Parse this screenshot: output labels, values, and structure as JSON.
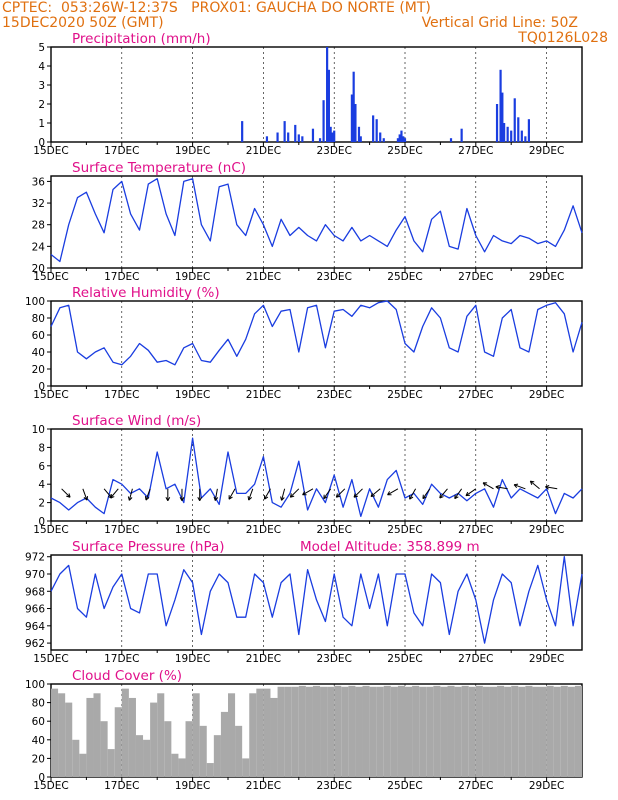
{
  "header": {
    "line1_left": "CPTEC:  053:26W-12:37S   PROX01: GAUCHA DO NORTE (MT)",
    "line2_left": "15DEC2020 50Z (GMT)",
    "line2_right": "Vertical Grid Line: 50Z",
    "line3_right": "TQ0126L028"
  },
  "colors": {
    "header": "#e07010",
    "title": "#e0108a",
    "line": "#1a3de0",
    "cloud": "#a9a9a9",
    "arrow": "#000000"
  },
  "x_axis_labels": [
    "15DEC",
    "17DEC",
    "19DEC",
    "21DEC",
    "23DEC",
    "25DEC",
    "27DEC",
    "29DEC"
  ],
  "extra_annotations": {
    "model_altitude": "Model Altitude: 358.899 m"
  },
  "chart_data": [
    {
      "type": "bar",
      "title": "Precipitation (mm/h)",
      "ylim": [
        0,
        5
      ],
      "yticks": [
        "0",
        "1",
        "2",
        "3",
        "4",
        "5"
      ],
      "x_unit": "days since 15DEC 00Z",
      "x": [
        5.4,
        6.1,
        6.4,
        6.6,
        6.7,
        6.9,
        7.0,
        7.1,
        7.4,
        7.6,
        7.7,
        7.8,
        7.85,
        7.9,
        7.95,
        8.0,
        8.5,
        8.55,
        8.6,
        8.7,
        8.75,
        9.1,
        9.2,
        9.3,
        9.4,
        9.8,
        9.85,
        9.9,
        9.95,
        10.0,
        11.3,
        11.6,
        12.6,
        12.7,
        12.75,
        12.8,
        12.9,
        13.0,
        13.1,
        13.2,
        13.3,
        13.4,
        13.5
      ],
      "values": [
        1.1,
        0.3,
        0.5,
        1.1,
        0.5,
        0.9,
        0.4,
        0.3,
        0.7,
        0.2,
        2.2,
        5.0,
        3.8,
        0.8,
        0.5,
        0.6,
        2.5,
        3.7,
        2.0,
        0.8,
        0.3,
        1.4,
        1.2,
        0.5,
        0.2,
        0.2,
        0.4,
        0.6,
        0.3,
        0.2,
        0.2,
        0.7,
        2.0,
        3.8,
        2.6,
        1.0,
        0.8,
        0.6,
        2.3,
        1.3,
        0.6,
        0.3,
        1.2
      ]
    },
    {
      "type": "line",
      "title": "Surface Temperature (nC)",
      "ylim": [
        20,
        37
      ],
      "yticks": [
        "20",
        "24",
        "28",
        "32",
        "36"
      ],
      "x": [
        0,
        0.25,
        0.5,
        0.75,
        1,
        1.25,
        1.5,
        1.75,
        2,
        2.25,
        2.5,
        2.75,
        3,
        3.25,
        3.5,
        3.75,
        4,
        4.25,
        4.5,
        4.75,
        5,
        5.25,
        5.5,
        5.75,
        6,
        6.25,
        6.5,
        6.75,
        7,
        7.25,
        7.5,
        7.75,
        8,
        8.25,
        8.5,
        8.75,
        9,
        9.25,
        9.5,
        9.75,
        10,
        10.25,
        10.5,
        10.75,
        11,
        11.25,
        11.5,
        11.75,
        12,
        12.25,
        12.5,
        12.75,
        13,
        13.25,
        13.5,
        13.75,
        14,
        14.25,
        14.5,
        14.75,
        15
      ],
      "values": [
        22.5,
        21.2,
        28,
        33,
        34,
        30,
        26.5,
        34.5,
        36,
        30,
        27,
        35.5,
        36.5,
        30,
        26,
        36,
        36.5,
        28,
        25,
        35,
        35.5,
        28,
        26,
        31,
        28,
        24,
        29,
        26,
        27.5,
        26,
        25,
        28,
        26,
        25,
        27.5,
        25,
        26,
        25,
        24,
        27,
        29.5,
        25,
        23,
        29,
        30.5,
        24,
        23.5,
        31,
        26,
        23,
        26,
        25,
        24.5,
        26,
        25.5,
        24.5,
        25,
        24,
        27,
        31.5,
        26.5
      ]
    },
    {
      "type": "line",
      "title": "Relative Humidity (%)",
      "ylim": [
        0,
        100
      ],
      "yticks": [
        "0",
        "20",
        "40",
        "60",
        "80",
        "100"
      ],
      "x": [
        0,
        0.25,
        0.5,
        0.75,
        1,
        1.25,
        1.5,
        1.75,
        2,
        2.25,
        2.5,
        2.75,
        3,
        3.25,
        3.5,
        3.75,
        4,
        4.25,
        4.5,
        4.75,
        5,
        5.25,
        5.5,
        5.75,
        6,
        6.25,
        6.5,
        6.75,
        7,
        7.25,
        7.5,
        7.75,
        8,
        8.25,
        8.5,
        8.75,
        9,
        9.25,
        9.5,
        9.75,
        10,
        10.25,
        10.5,
        10.75,
        11,
        11.25,
        11.5,
        11.75,
        12,
        12.25,
        12.5,
        12.75,
        13,
        13.25,
        13.5,
        13.75,
        14,
        14.25,
        14.5,
        14.75,
        15
      ],
      "values": [
        70,
        92,
        95,
        40,
        32,
        40,
        45,
        28,
        25,
        35,
        50,
        42,
        28,
        30,
        25,
        45,
        50,
        30,
        28,
        42,
        55,
        35,
        55,
        85,
        95,
        70,
        88,
        90,
        40,
        92,
        95,
        45,
        88,
        90,
        82,
        95,
        92,
        98,
        100,
        90,
        50,
        40,
        70,
        92,
        80,
        45,
        40,
        82,
        95,
        40,
        35,
        80,
        90,
        45,
        40,
        90,
        95,
        98,
        85,
        40,
        75
      ]
    },
    {
      "type": "line",
      "title": "Surface Wind (m/s)",
      "ylim": [
        0,
        10
      ],
      "yticks": [
        "0",
        "2",
        "4",
        "6",
        "8",
        "10"
      ],
      "x": [
        0,
        0.25,
        0.5,
        0.75,
        1,
        1.25,
        1.5,
        1.75,
        2,
        2.25,
        2.5,
        2.75,
        3,
        3.25,
        3.5,
        3.75,
        4,
        4.25,
        4.5,
        4.75,
        5,
        5.25,
        5.5,
        5.75,
        6,
        6.25,
        6.5,
        6.75,
        7,
        7.25,
        7.5,
        7.75,
        8,
        8.25,
        8.5,
        8.75,
        9,
        9.25,
        9.5,
        9.75,
        10,
        10.25,
        10.5,
        10.75,
        11,
        11.25,
        11.5,
        11.75,
        12,
        12.25,
        12.5,
        12.75,
        13,
        13.25,
        13.5,
        13.75,
        14,
        14.25,
        14.5,
        14.75,
        15
      ],
      "values": [
        2.5,
        2,
        1.2,
        2,
        2.5,
        1.5,
        0.8,
        4.5,
        4,
        3,
        3.5,
        2.5,
        7.5,
        3.5,
        4,
        2,
        9,
        2.5,
        3.5,
        1.8,
        7.5,
        3,
        3,
        4,
        7,
        2,
        1.5,
        3,
        6.5,
        1.2,
        3.5,
        2,
        5,
        1.5,
        4.5,
        0.5,
        3.5,
        1.5,
        4.5,
        5.5,
        2.5,
        3,
        1.8,
        4,
        3,
        2.5,
        3,
        2.2,
        3,
        3.5,
        1.5,
        4.5,
        2.5,
        3.5,
        3,
        2.5,
        3.5,
        0.8,
        3,
        2.5,
        3.5
      ],
      "wind_arrows": [
        [
          0.3,
          135
        ],
        [
          0.9,
          160
        ],
        [
          1.5,
          140
        ],
        [
          1.9,
          220
        ],
        [
          2.3,
          195
        ],
        [
          2.8,
          200
        ],
        [
          3.3,
          180
        ],
        [
          3.7,
          180
        ],
        [
          4.2,
          180
        ],
        [
          4.7,
          190
        ],
        [
          5.2,
          210
        ],
        [
          5.7,
          200
        ],
        [
          6.2,
          210
        ],
        [
          6.6,
          195
        ],
        [
          7.0,
          225
        ],
        [
          7.4,
          240
        ],
        [
          7.9,
          215
        ],
        [
          8.3,
          225
        ],
        [
          8.8,
          225
        ],
        [
          9.3,
          230
        ],
        [
          9.8,
          240
        ],
        [
          10.3,
          210
        ],
        [
          10.7,
          215
        ],
        [
          11.2,
          220
        ],
        [
          11.6,
          215
        ],
        [
          12.0,
          235
        ],
        [
          12.5,
          300
        ],
        [
          12.9,
          280
        ],
        [
          13.4,
          290
        ],
        [
          13.8,
          310
        ],
        [
          14.3,
          280
        ]
      ]
    },
    {
      "type": "line",
      "title": "Surface Pressure (hPa)",
      "ylim": [
        961.2,
        972.2
      ],
      "yticks": [
        "962",
        "964",
        "966",
        "968",
        "970",
        "972"
      ],
      "x": [
        0,
        0.25,
        0.5,
        0.75,
        1,
        1.25,
        1.5,
        1.75,
        2,
        2.25,
        2.5,
        2.75,
        3,
        3.25,
        3.5,
        3.75,
        4,
        4.25,
        4.5,
        4.75,
        5,
        5.25,
        5.5,
        5.75,
        6,
        6.25,
        6.5,
        6.75,
        7,
        7.25,
        7.5,
        7.75,
        8,
        8.25,
        8.5,
        8.75,
        9,
        9.25,
        9.5,
        9.75,
        10,
        10.25,
        10.5,
        10.75,
        11,
        11.25,
        11.5,
        11.75,
        12,
        12.25,
        12.5,
        12.75,
        13,
        13.25,
        13.5,
        13.75,
        14,
        14.25,
        14.5,
        14.75,
        15
      ],
      "values": [
        968,
        970,
        971,
        966,
        965,
        970,
        966,
        968.5,
        970,
        966,
        965.5,
        970,
        970,
        964,
        967,
        970.5,
        969,
        963,
        968,
        970,
        969,
        965,
        965,
        970,
        969,
        965,
        969,
        970,
        963,
        970.5,
        967,
        964.5,
        970,
        965,
        964,
        970,
        966,
        970,
        964,
        970,
        970,
        965.5,
        964,
        970,
        969,
        963,
        968,
        970,
        967,
        962,
        967,
        970,
        969,
        964,
        968,
        971,
        967,
        964,
        972,
        964,
        970
      ]
    },
    {
      "type": "bar",
      "title": "Cloud Cover (%)",
      "ylim": [
        0,
        100
      ],
      "yticks": [
        "0",
        "20",
        "40",
        "60",
        "80",
        "100"
      ],
      "x": [
        0.1,
        0.3,
        0.5,
        0.7,
        0.9,
        1.1,
        1.3,
        1.5,
        1.7,
        1.9,
        2.1,
        2.3,
        2.5,
        2.7,
        2.9,
        3.1,
        3.3,
        3.5,
        3.7,
        3.9,
        4.1,
        4.3,
        4.5,
        4.7,
        4.9,
        5.1,
        5.3,
        5.5,
        5.7,
        5.9,
        6.1,
        6.3,
        6.5,
        6.7,
        6.9,
        7.1,
        7.3,
        7.5,
        7.7,
        7.9,
        8.1,
        8.3,
        8.5,
        8.7,
        8.9,
        9.1,
        9.3,
        9.5,
        9.7,
        9.9,
        10.1,
        10.3,
        10.5,
        10.7,
        10.9,
        11.1,
        11.3,
        11.5,
        11.7,
        11.9,
        12.1,
        12.3,
        12.5,
        12.7,
        12.9,
        13.1,
        13.3,
        13.5,
        13.7,
        13.9,
        14.1,
        14.3,
        14.5,
        14.7,
        14.9
      ],
      "values": [
        95,
        90,
        80,
        40,
        25,
        85,
        90,
        60,
        30,
        75,
        95,
        85,
        45,
        40,
        80,
        90,
        60,
        25,
        20,
        60,
        90,
        55,
        15,
        45,
        70,
        90,
        55,
        20,
        90,
        95,
        95,
        85,
        97,
        97,
        97,
        98,
        97,
        98,
        97,
        97,
        98,
        97,
        98,
        97,
        98,
        97,
        97,
        98,
        97,
        98,
        97,
        98,
        97,
        97,
        98,
        97,
        98,
        97,
        98,
        97,
        98,
        97,
        97,
        98,
        97,
        98,
        97,
        98,
        97,
        97,
        98,
        97,
        98,
        97,
        98
      ]
    }
  ]
}
